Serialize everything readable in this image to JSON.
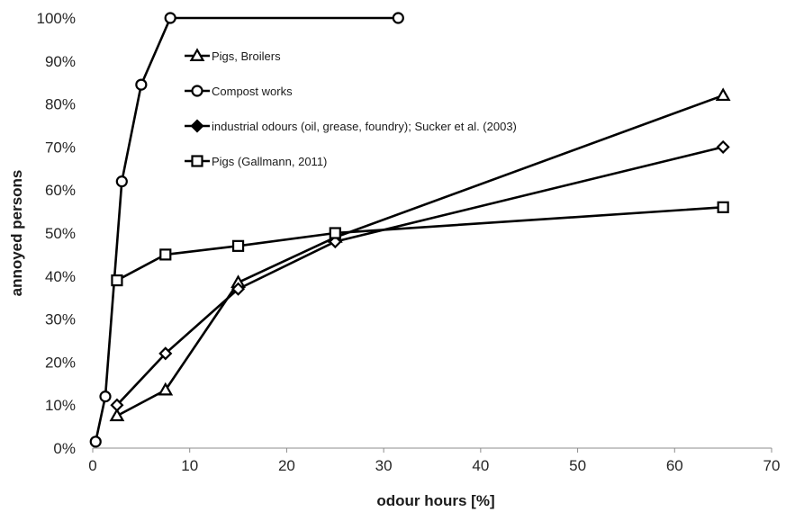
{
  "chart_data": {
    "type": "line",
    "xlabel": "odour hours [%]",
    "ylabel": "annoyed persons",
    "xlim": [
      0,
      70
    ],
    "ylim": [
      0,
      100
    ],
    "x_ticks": [
      "0",
      "10",
      "20",
      "30",
      "40",
      "50",
      "60",
      "70"
    ],
    "y_ticks": [
      "0%",
      "10%",
      "20%",
      "30%",
      "40%",
      "50%",
      "60%",
      "70%",
      "80%",
      "90%",
      "100%"
    ],
    "grid": false,
    "legend_position": "top-left",
    "series": [
      {
        "name": "Pigs, Broilers",
        "marker": "triangle",
        "x": [
          2.5,
          7.5,
          15,
          25,
          65
        ],
        "y": [
          7.5,
          13.5,
          38.5,
          49,
          82
        ]
      },
      {
        "name": "Compost works",
        "marker": "circle",
        "x": [
          0.3,
          1.3,
          3,
          5,
          8,
          31.5
        ],
        "y": [
          1.5,
          12,
          62,
          84.5,
          100,
          100
        ]
      },
      {
        "name": "industrial odours (oil, grease, foundry); Sucker et al. (2003)",
        "marker": "diamond",
        "x": [
          2.5,
          7.5,
          15,
          25,
          65
        ],
        "y": [
          10,
          22,
          37,
          48,
          70
        ]
      },
      {
        "name": "Pigs (Gallmann, 2011)",
        "marker": "square",
        "x": [
          2.5,
          7.5,
          15,
          25,
          65
        ],
        "y": [
          39,
          45,
          47,
          50,
          56
        ]
      }
    ]
  }
}
